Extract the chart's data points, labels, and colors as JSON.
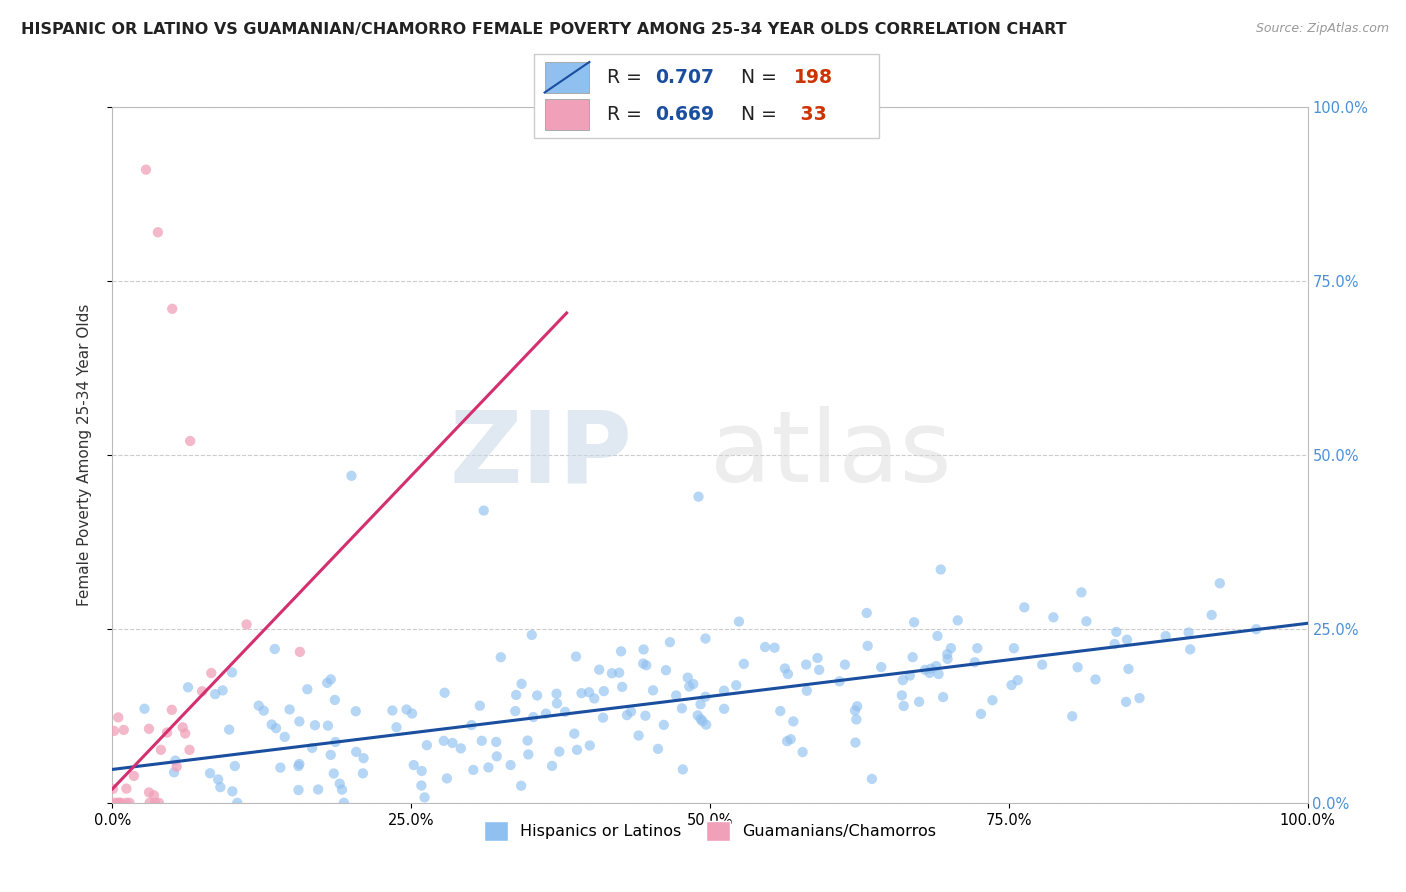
{
  "title": "HISPANIC OR LATINO VS GUAMANIAN/CHAMORRO FEMALE POVERTY AMONG 25-34 YEAR OLDS CORRELATION CHART",
  "source": "Source: ZipAtlas.com",
  "ylabel": "Female Poverty Among 25-34 Year Olds",
  "watermark_zip": "ZIP",
  "watermark_atlas": "atlas",
  "blue_R": 0.707,
  "blue_N": 198,
  "pink_R": 0.669,
  "pink_N": 33,
  "blue_color": "#90c0f0",
  "pink_color": "#f0a0b8",
  "blue_line_color": "#1a4e9e",
  "pink_line_color": "#d43070",
  "xlim": [
    0,
    1
  ],
  "ylim": [
    0,
    1
  ],
  "background_color": "#ffffff",
  "grid_color": "#cccccc",
  "title_fontsize": 11.5,
  "axis_label_fontsize": 11,
  "xtick_labels": [
    "0.0%",
    "25.0%",
    "50.0%",
    "75.0%",
    "100.0%"
  ],
  "xtick_vals": [
    0,
    0.25,
    0.5,
    0.75,
    1.0
  ],
  "right_ytick_labels": [
    "0.0%",
    "25.0%",
    "50.0%",
    "75.0%",
    "100.0%"
  ],
  "right_ytick_vals": [
    0,
    0.25,
    0.5,
    0.75,
    1.0
  ],
  "legend_label_blue": "Hispanics or Latinos",
  "legend_label_pink": "Guamanians/Chamorros",
  "legend_R_color": "#1a4e9e",
  "legend_N_color": "#cc3300",
  "right_tick_color": "#4a90d9"
}
